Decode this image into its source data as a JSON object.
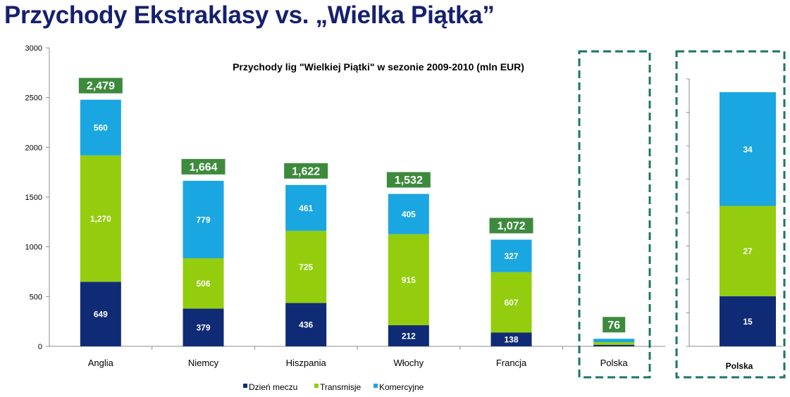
{
  "slide": {
    "title": "Przychody Ekstraklasy vs. „Wielka Piątka”"
  },
  "colors": {
    "dzien_meczu": "#102b75",
    "transmisje": "#93cd0d",
    "komercyjne": "#1aa6e0",
    "total_badge": "#3d8a3d",
    "highlight_border": "#1c7467",
    "title_text": "#16206e"
  },
  "chart_data": [
    {
      "type": "bar",
      "stacked": true,
      "title": "Przychody lig \"Wielkiej Piątki\" w sezonie 2009-2010 (mln EUR)",
      "categories": [
        "Anglia",
        "Niemcy",
        "Hiszpania",
        "Włochy",
        "Francja",
        "Polska"
      ],
      "series": [
        {
          "name": "Dzień meczu",
          "values": [
            649,
            379,
            436,
            212,
            138,
            15
          ],
          "labels": [
            "649",
            "379",
            "436",
            "212",
            "138",
            ""
          ]
        },
        {
          "name": "Transmisje",
          "values": [
            1270,
            506,
            725,
            915,
            607,
            27
          ],
          "labels": [
            "1,270",
            "506",
            "725",
            "915",
            "607",
            ""
          ]
        },
        {
          "name": "Komercyjne",
          "values": [
            560,
            779,
            461,
            405,
            327,
            34
          ],
          "labels": [
            "560",
            "779",
            "461",
            "405",
            "327",
            ""
          ]
        }
      ],
      "totals": [
        2479,
        1664,
        1622,
        1532,
        1072,
        76
      ],
      "total_labels": [
        "2,479",
        "1,664",
        "1,622",
        "1,532",
        "1,072",
        "76"
      ],
      "ylim": [
        0,
        3000
      ],
      "yticks": [
        "0",
        "500",
        "1000",
        "1500",
        "2000",
        "2500",
        "3000"
      ],
      "ytick_values": [
        0,
        500,
        1000,
        1500,
        2000,
        2500,
        3000
      ],
      "legend_position": "bottom",
      "grid": false,
      "highlighted_category": "Polska"
    },
    {
      "type": "bar",
      "stacked": true,
      "categories": [
        "Polska"
      ],
      "series": [
        {
          "name": "Dzień meczu",
          "values": [
            15
          ],
          "labels": [
            "15"
          ]
        },
        {
          "name": "Transmisje",
          "values": [
            27
          ],
          "labels": [
            "27"
          ]
        },
        {
          "name": "Komercyjne",
          "values": [
            34
          ],
          "labels": [
            "34"
          ]
        }
      ],
      "ylim": [
        0,
        80
      ],
      "tick_count": 8,
      "grid": false
    }
  ]
}
